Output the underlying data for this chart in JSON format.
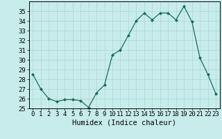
{
  "x": [
    0,
    1,
    2,
    3,
    4,
    5,
    6,
    7,
    8,
    9,
    10,
    11,
    12,
    13,
    14,
    15,
    16,
    17,
    18,
    19,
    20,
    21,
    22,
    23
  ],
  "y": [
    28.5,
    27.0,
    26.0,
    25.7,
    25.9,
    25.9,
    25.8,
    25.1,
    26.6,
    27.4,
    30.5,
    31.0,
    32.5,
    34.0,
    34.8,
    34.1,
    34.8,
    34.8,
    34.1,
    35.5,
    33.9,
    30.2,
    28.5,
    26.5
  ],
  "line_color": "#1a6b5a",
  "marker": "D",
  "marker_size": 2.0,
  "bg_color": "#c8ecec",
  "grid_color": "#aad4d4",
  "xlabel": "Humidex (Indice chaleur)",
  "ylim": [
    25,
    36
  ],
  "xlim": [
    -0.5,
    23.5
  ],
  "yticks": [
    25,
    26,
    27,
    28,
    29,
    30,
    31,
    32,
    33,
    34,
    35
  ],
  "xticks": [
    0,
    1,
    2,
    3,
    4,
    5,
    6,
    7,
    8,
    9,
    10,
    11,
    12,
    13,
    14,
    15,
    16,
    17,
    18,
    19,
    20,
    21,
    22,
    23
  ],
  "tick_fontsize": 6.5,
  "xlabel_fontsize": 7.5
}
